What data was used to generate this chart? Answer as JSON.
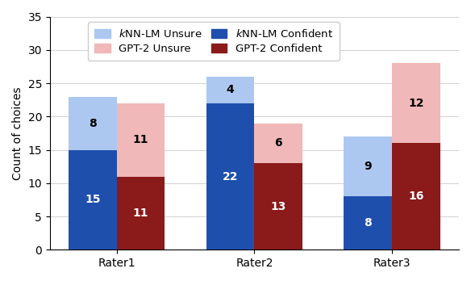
{
  "raters": [
    "Rater1",
    "Rater2",
    "Rater3"
  ],
  "knn_confident": [
    15,
    22,
    8
  ],
  "knn_unsure": [
    8,
    4,
    9
  ],
  "gpt2_confident": [
    11,
    13,
    16
  ],
  "gpt2_unsure": [
    11,
    6,
    12
  ],
  "knn_confident_color": "#1f4fad",
  "knn_unsure_color": "#adc8f0",
  "gpt2_confident_color": "#8b1a1a",
  "gpt2_unsure_color": "#f0b8b8",
  "ylabel": "Count of choices",
  "ylim": [
    0,
    35
  ],
  "yticks": [
    0,
    5,
    10,
    15,
    20,
    25,
    30,
    35
  ],
  "bar_width": 0.35,
  "label_fontsize": 10,
  "tick_fontsize": 10,
  "annot_fontsize": 10,
  "legend_fontsize": 9.5
}
